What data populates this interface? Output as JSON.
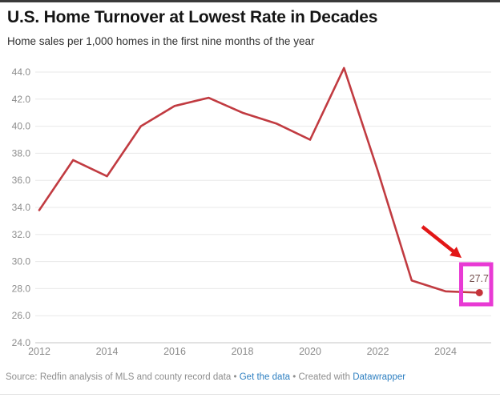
{
  "header": {
    "title": "U.S. Home Turnover at Lowest Rate in Decades",
    "subtitle": "Home sales per 1,000 homes in the first nine months of the year"
  },
  "chart_data": {
    "type": "line",
    "title": "U.S. Home Turnover at Lowest Rate in Decades",
    "subtitle": "Home sales per 1,000 homes in the first nine months of the year",
    "x": [
      2012,
      2013,
      2014,
      2015,
      2016,
      2017,
      2018,
      2019,
      2020,
      2021,
      2022,
      2023,
      2024,
      2025
    ],
    "series": [
      {
        "name": "Home sales per 1,000 homes",
        "color": "#c13b41",
        "values": [
          33.8,
          37.5,
          36.3,
          40.0,
          41.5,
          42.1,
          41.0,
          40.2,
          39.0,
          44.3,
          36.7,
          28.6,
          27.8,
          27.7
        ]
      }
    ],
    "x_ticks": [
      2012,
      2014,
      2016,
      2018,
      2020,
      2022,
      2024
    ],
    "y_ticks": [
      24,
      26,
      28,
      30,
      32,
      34,
      36,
      38,
      40,
      42,
      44
    ],
    "ylim": [
      24,
      44.3
    ],
    "xlabel": "",
    "ylabel": "",
    "grid": "horizontal",
    "legend": "none",
    "end_point_label": "27.7"
  },
  "annotations": {
    "end_value_label": "27.7",
    "highlight_box_color": "#e83ad4",
    "arrow_color": "#e21717"
  },
  "colors": {
    "line": "#c13b41",
    "end_dot": "#c5343a",
    "end_label": "#74504e",
    "axis_text": "#8c8c8c",
    "gridline": "#e8e8e8",
    "baseline": "#c6c6c6"
  },
  "footer": {
    "source_prefix": "Source:",
    "source_text": "Redfin analysis of MLS and county record data",
    "separator1": "•",
    "link_get_data": "Get the data",
    "separator2": "•",
    "created_with": "Created with",
    "link_datawrapper": "Datawrapper"
  }
}
